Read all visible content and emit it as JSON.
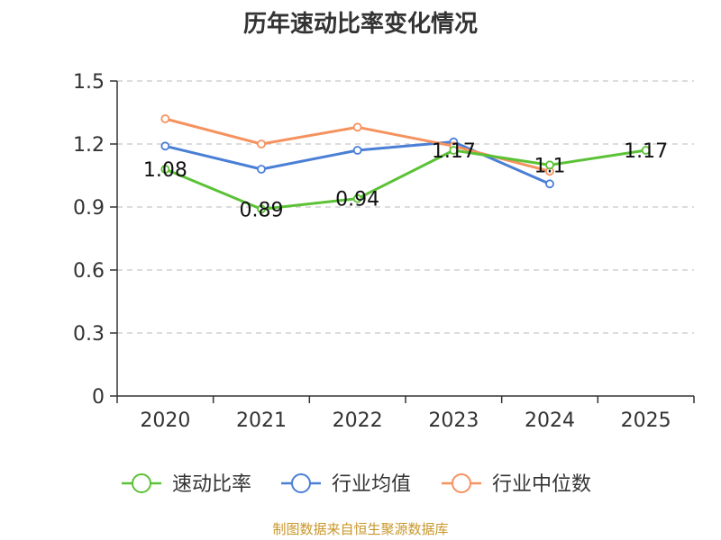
{
  "chart_data": {
    "type": "line",
    "title": "历年速动比率变化情况",
    "categories": [
      "2020",
      "2021",
      "2022",
      "2023",
      "2024",
      "2025"
    ],
    "yticks": [
      "0",
      "0.3",
      "0.6",
      "0.9",
      "1.2",
      "1.5"
    ],
    "ylim": [
      0,
      1.5
    ],
    "grid": true,
    "legend_position": "bottom",
    "series": [
      {
        "name": "速动比率",
        "color": "#5bc236",
        "values": [
          1.08,
          0.89,
          0.94,
          1.17,
          1.1,
          1.17
        ],
        "labels": [
          "1.08",
          "0.89",
          "0.94",
          "1.17",
          "1.1",
          "1.17"
        ]
      },
      {
        "name": "行业均值",
        "color": "#4a7fd6",
        "values": [
          1.19,
          1.08,
          1.17,
          1.21,
          1.01,
          null
        ]
      },
      {
        "name": "行业中位数",
        "color": "#f5925e",
        "values": [
          1.32,
          1.2,
          1.28,
          1.19,
          1.07,
          null
        ]
      }
    ]
  },
  "source_note": "制图数据来自恒生聚源数据库"
}
